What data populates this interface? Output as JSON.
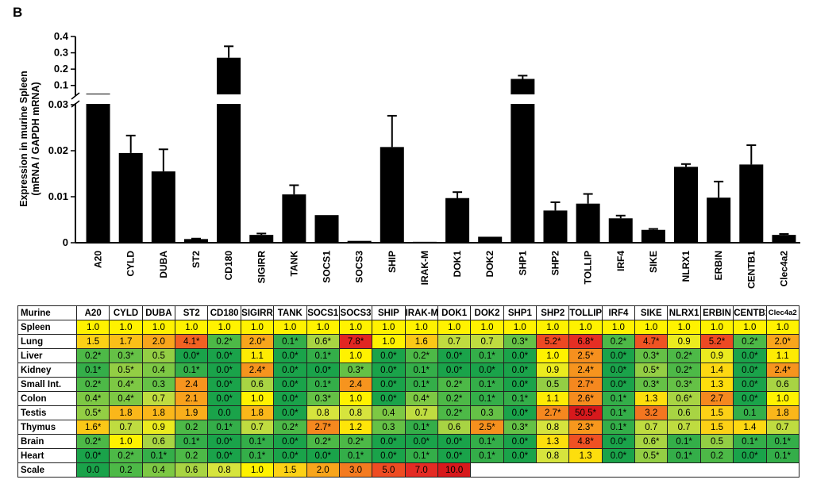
{
  "panel_label": "B",
  "chart_data": [
    {
      "type": "bar",
      "title": "",
      "xlabel": "",
      "ylabel": "Expression in murine Spleen (mRNA / GAPDH mRNA)",
      "ylabel_lines": [
        "Expression in murine Spleen",
        "(mRNA / GAPDH mRNA)"
      ],
      "axis_break": true,
      "ylim_lower": [
        0,
        0.03
      ],
      "ylim_upper": [
        0.05,
        0.4
      ],
      "yticks_lower": [
        0,
        0.01,
        0.02,
        0.03
      ],
      "ytick_labels_lower": [
        "0",
        "0.01",
        "0.02",
        "0.03"
      ],
      "yticks_upper": [
        0.1,
        0.2,
        0.3,
        0.4
      ],
      "ytick_labels_upper": [
        "0.1",
        "0.2",
        "0.3",
        "0.4"
      ],
      "categories": [
        "A20",
        "CYLD",
        "DUBA",
        "ST2",
        "CD180",
        "SIGIRR",
        "TANK",
        "SOCS1",
        "SOCS3",
        "SHIP",
        "IRAK-M",
        "DOK1",
        "DOK2",
        "SHP1",
        "SHP2",
        "TOLLIP",
        "IRF4",
        "SIKE",
        "NLRX1",
        "ERBIN",
        "CENTB1",
        "Clec4a2"
      ],
      "values": [
        0.05,
        0.0195,
        0.0155,
        0.0008,
        0.27,
        0.0017,
        0.0105,
        0.006,
        0.0004,
        0.0208,
        0.0002,
        0.0097,
        0.0013,
        0.14,
        0.007,
        0.0085,
        0.0053,
        0.0028,
        0.0165,
        0.0098,
        0.017,
        0.0017
      ],
      "errors": [
        0,
        0.0038,
        0.0048,
        0.0001,
        0.07,
        0.0003,
        0.002,
        0,
        0,
        0.0068,
        0,
        0.0013,
        0,
        0.02,
        0.0018,
        0.0021,
        0.0006,
        0.0002,
        0.0006,
        0.0035,
        0.0042,
        0.0002
      ]
    },
    {
      "type": "heatmap",
      "corner_label": "Murine",
      "columns": [
        "A20",
        "CYLD",
        "DUBA",
        "ST2",
        "CD180",
        "SIGIRR",
        "TANK",
        "SOCS1",
        "SOCS3",
        "SHIP",
        "IRAK-M",
        "DOK1",
        "DOK2",
        "SHP1",
        "SHP2",
        "TOLLIP",
        "IRF4",
        "SIKE",
        "NLRX1",
        "ERBIN",
        "CENTB1",
        "Clec4a2"
      ],
      "rows": [
        {
          "label": "Spleen",
          "cells": [
            "1.0",
            "1.0",
            "1.0",
            "1.0",
            "1.0",
            "1.0",
            "1.0",
            "1.0",
            "1.0",
            "1.0",
            "1.0",
            "1.0",
            "1.0",
            "1.0",
            "1.0",
            "1.0",
            "1.0",
            "1.0",
            "1.0",
            "1.0",
            "1.0",
            "1.0"
          ]
        },
        {
          "label": "Lung",
          "cells": [
            "1.5",
            "1.7",
            "2.0",
            "4.1*",
            "0.2*",
            "2.0*",
            "0.1*",
            "0.6*",
            "7.8*",
            "1.0",
            "1.6",
            "0.7",
            "0.7",
            "0.3*",
            "5.2*",
            "6.8*",
            "0.2*",
            "4.7*",
            "0.9",
            "5.2*",
            "0.2*",
            "2.0*"
          ]
        },
        {
          "label": "Liver",
          "cells": [
            "0.2*",
            "0.3*",
            "0.5",
            "0.0*",
            "0.0*",
            "1.1",
            "0.0*",
            "0.1*",
            "1.0",
            "0.0*",
            "0.2*",
            "0.0*",
            "0.1*",
            "0.0*",
            "1.0",
            "2.5*",
            "0.0*",
            "0.3*",
            "0.2*",
            "0.9",
            "0.0*",
            "1.1"
          ]
        },
        {
          "label": "Kidney",
          "cells": [
            "0.1*",
            "0.5*",
            "0.4",
            "0.1*",
            "0.0*",
            "2.4*",
            "0.0*",
            "0.0*",
            "0.3*",
            "0.0*",
            "0.1*",
            "0.0*",
            "0.0*",
            "0.0*",
            "0.9",
            "2.4*",
            "0.0*",
            "0.5*",
            "0.2*",
            "1.4",
            "0.0*",
            "2.4*"
          ]
        },
        {
          "label": "Small Int.",
          "cells": [
            "0.2*",
            "0.4*",
            "0.3",
            "2.4",
            "0.0*",
            "0.6",
            "0.0*",
            "0.1*",
            "2.4",
            "0.0*",
            "0.1*",
            "0.2*",
            "0.1*",
            "0.0*",
            "0.5",
            "2.7*",
            "0.0*",
            "0.3*",
            "0.3*",
            "1.3",
            "0.0*",
            "0.6"
          ]
        },
        {
          "label": "Colon",
          "cells": [
            "0.4*",
            "0.4*",
            "0.7",
            "2.1",
            "0.0*",
            "1.0",
            "0.0*",
            "0.3*",
            "1.0",
            "0.0*",
            "0.4*",
            "0.2*",
            "0.1*",
            "0.1*",
            "1.1",
            "2.6*",
            "0.1*",
            "1.3",
            "0.6*",
            "2.7",
            "0.0*",
            "1.0"
          ]
        },
        {
          "label": "Testis",
          "cells": [
            "0.5*",
            "1.8",
            "1.8",
            "1.9",
            "0.0",
            "1.8",
            "0.0*",
            "0.8",
            "0.8",
            "0.4",
            "0.7",
            "0.2*",
            "0.3",
            "0.0*",
            "2.7*",
            "50.5*",
            "0.1*",
            "3.2",
            "0.6",
            "1.5",
            "0.1",
            "1.8"
          ]
        },
        {
          "label": "Thymus",
          "cells": [
            "1.6*",
            "0.7",
            "0.9",
            "0.2",
            "0.1*",
            "0.7",
            "0.2*",
            "2.7*",
            "1.2",
            "0.3",
            "0.1*",
            "0.6",
            "2.5*",
            "0.3*",
            "0.8",
            "2.3*",
            "0.1*",
            "0.7",
            "0.7",
            "1.5",
            "1.4",
            "0.7"
          ]
        },
        {
          "label": "Brain",
          "cells": [
            "0.2*",
            "1.0",
            "0.6",
            "0.1*",
            "0.0*",
            "0.1*",
            "0.0*",
            "0.2*",
            "0.2*",
            "0.0*",
            "0.0*",
            "0.0*",
            "0.1*",
            "0.0*",
            "1.3",
            "4.8*",
            "0.0*",
            "0.6*",
            "0.1*",
            "0.5",
            "0.1*",
            "0.1*"
          ]
        },
        {
          "label": "Heart",
          "cells": [
            "0.0*",
            "0.2*",
            "0.1*",
            "0.2",
            "0.0*",
            "0.1*",
            "0.0*",
            "0.0*",
            "0.1*",
            "0.0*",
            "0.1*",
            "0.0*",
            "0.1*",
            "0.0*",
            "0.8",
            "1.3",
            "0.0*",
            "0.5*",
            "0.1*",
            "0.2",
            "0.0*",
            "0.1*"
          ]
        }
      ],
      "scale_label": "Scale",
      "scale_values": [
        "0.0",
        "0.2",
        "0.4",
        "0.6",
        "0.8",
        "1.0",
        "1.5",
        "2.0",
        "3.0",
        "5.0",
        "7.0",
        "10.0"
      ],
      "scale_colors": [
        "#1aa34a",
        "#4db947",
        "#7dc844",
        "#a8d443",
        "#d6e43d",
        "#fff200",
        "#fcd116",
        "#f8a51c",
        "#f47b20",
        "#ee4c23",
        "#e42b24",
        "#d7191c"
      ]
    }
  ]
}
